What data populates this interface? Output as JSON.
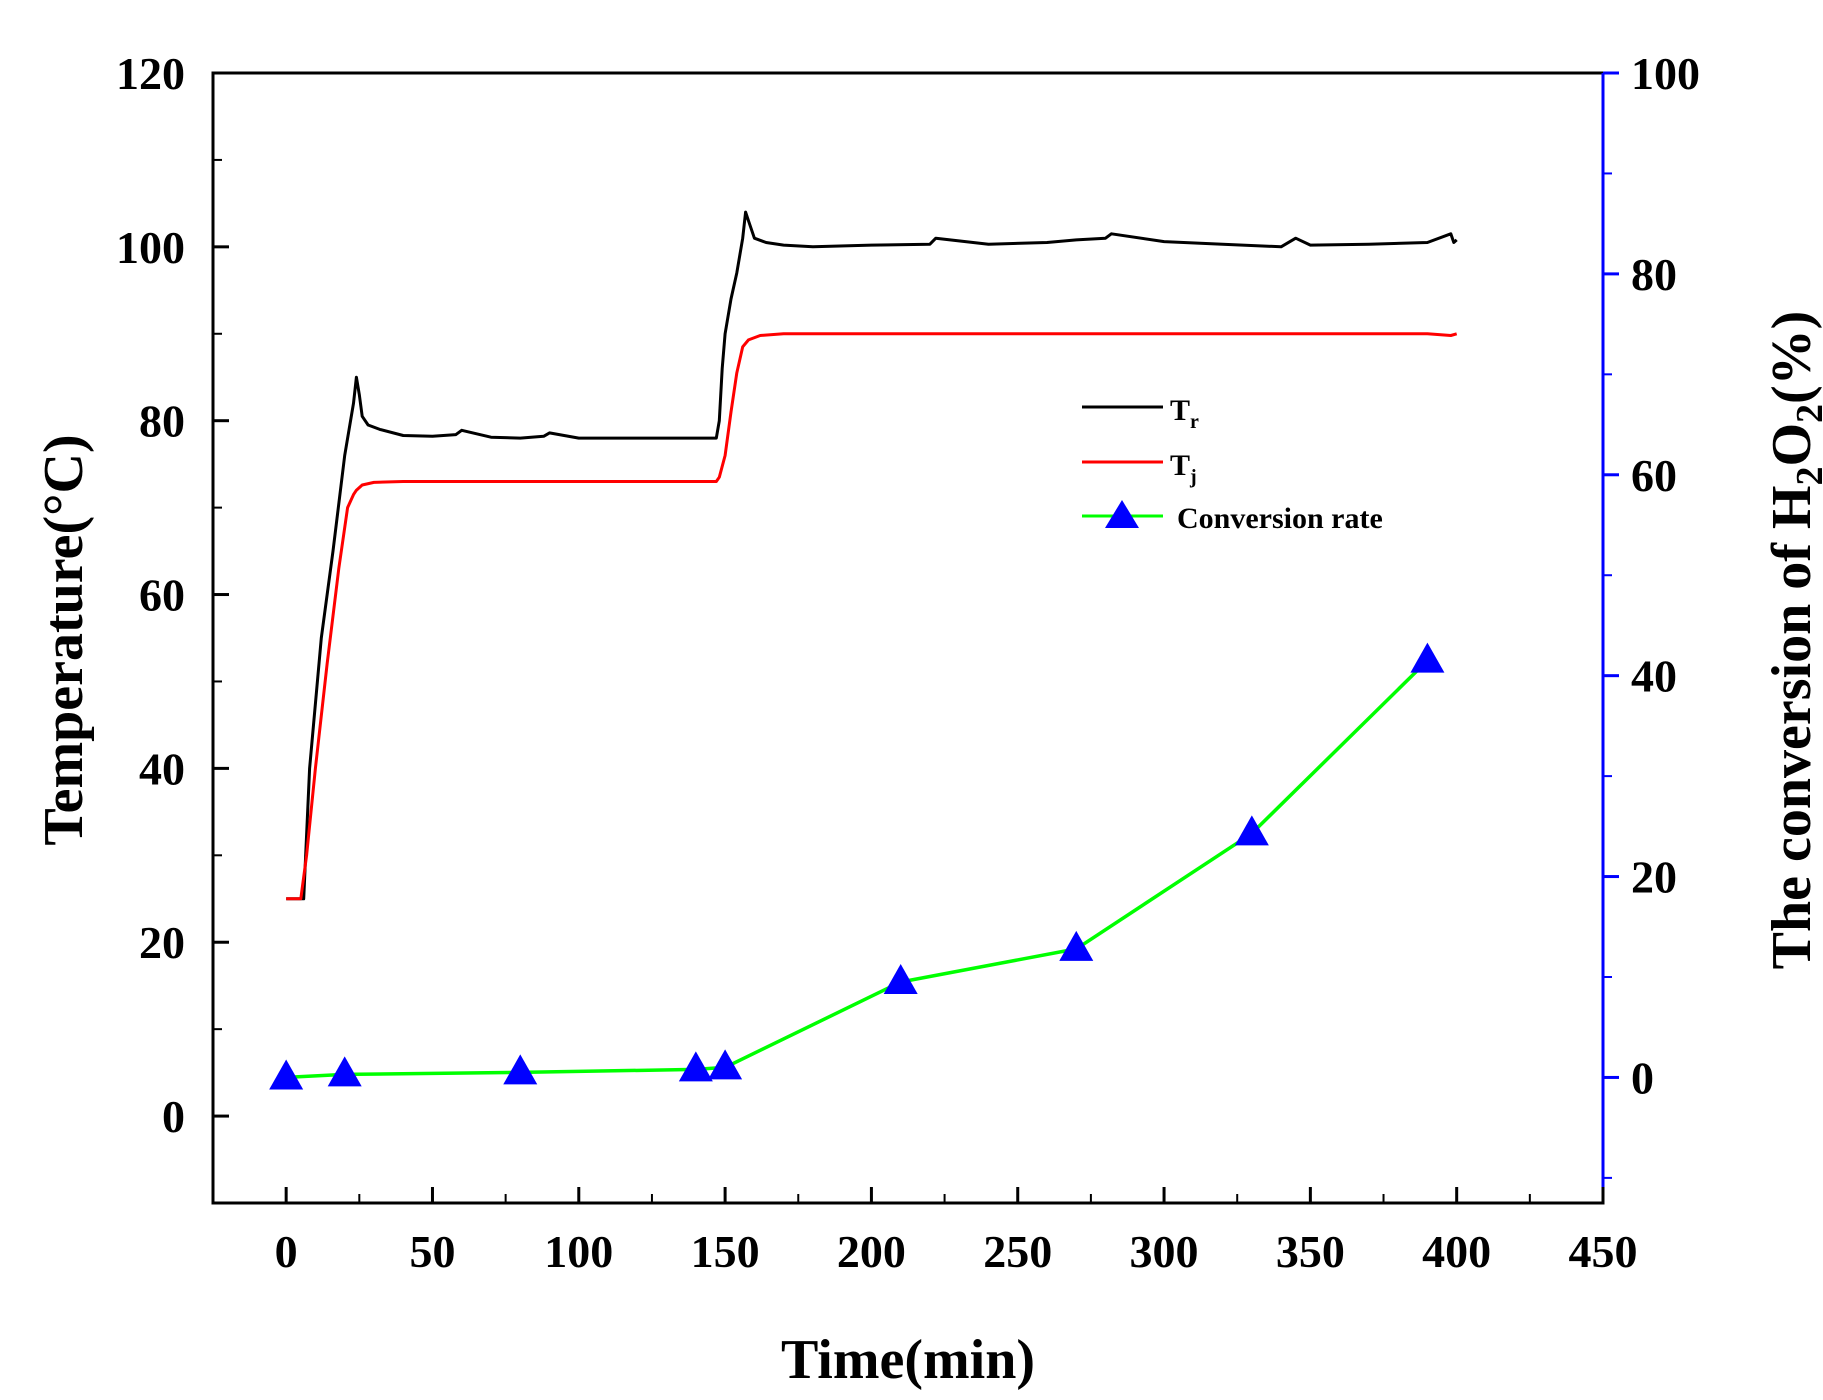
{
  "chart_data": {
    "type": "line",
    "title": "",
    "xlabel": "Time(min)",
    "ylabel_left": "Temperature(°C)",
    "ylabel_right": {
      "prefix": "The conversion of H",
      "sub1": "2",
      "mid": "O",
      "sub2": "2",
      "suffix": "(%)"
    },
    "xlim": [
      -25,
      450
    ],
    "x_ticks": [
      0,
      50,
      100,
      150,
      200,
      250,
      300,
      350,
      400,
      450
    ],
    "ylim_left": [
      -10,
      120
    ],
    "y_left_ticks": [
      0,
      20,
      40,
      60,
      80,
      100,
      120
    ],
    "ylim_right": [
      -12.5,
      100
    ],
    "y_right_ticks": [
      0,
      20,
      40,
      60,
      80,
      100
    ],
    "legend_position": "upper-right-inside",
    "series": [
      {
        "name": "Tr",
        "legend_main": "T",
        "legend_sub": "r",
        "axis": "left",
        "color": "#000000",
        "x": [
          0,
          2,
          4,
          6,
          8,
          12,
          16,
          20,
          23,
          24,
          25,
          26,
          28,
          32,
          40,
          50,
          58,
          60,
          70,
          80,
          88,
          90,
          100,
          110,
          120,
          130,
          140,
          147,
          148,
          149,
          150,
          152,
          154,
          156,
          157,
          158,
          160,
          164,
          170,
          180,
          200,
          220,
          222,
          240,
          260,
          270,
          280,
          282,
          300,
          320,
          340,
          345,
          350,
          370,
          390,
          398,
          399,
          400
        ],
        "y": [
          25,
          25,
          25,
          25,
          40,
          55,
          65,
          76,
          82,
          85,
          83,
          80.5,
          79.5,
          79,
          78.3,
          78.2,
          78.4,
          78.9,
          78.1,
          78,
          78.2,
          78.6,
          78,
          78,
          78,
          78,
          78,
          78,
          80,
          86,
          90,
          94,
          97,
          101,
          104,
          103,
          101,
          100.5,
          100.2,
          100,
          100.2,
          100.3,
          101,
          100.3,
          100.5,
          100.8,
          101,
          101.5,
          100.6,
          100.3,
          100,
          101,
          100.2,
          100.3,
          100.5,
          101.5,
          100.5,
          100.8
        ]
      },
      {
        "name": "Tj",
        "legend_main": "T",
        "legend_sub": "j",
        "axis": "left",
        "color": "#ff0000",
        "x": [
          0,
          2,
          4,
          5,
          7,
          10,
          14,
          18,
          21,
          23,
          24,
          26,
          30,
          40,
          60,
          80,
          100,
          120,
          140,
          147,
          148,
          150,
          152,
          154,
          156,
          158,
          162,
          170,
          180,
          200,
          250,
          300,
          350,
          390,
          398,
          400
        ],
        "y": [
          25,
          25,
          25,
          25,
          30,
          40,
          52,
          63,
          70,
          71.5,
          72,
          72.6,
          72.9,
          73,
          73,
          73,
          73,
          73,
          73,
          73,
          73.5,
          76,
          81,
          85.5,
          88.5,
          89.3,
          89.8,
          90,
          90,
          90,
          90,
          90,
          90,
          90,
          89.8,
          90
        ]
      },
      {
        "name": "Conversion rate",
        "axis": "right",
        "line_color": "#00ff00",
        "marker_color": "#0000ff",
        "marker": "triangle",
        "x": [
          0,
          20,
          80,
          140,
          150,
          210,
          270,
          330,
          390
        ],
        "y": [
          0,
          0.3,
          0.5,
          0.8,
          1.0,
          9.5,
          12.8,
          24.3,
          41.5
        ]
      }
    ]
  }
}
